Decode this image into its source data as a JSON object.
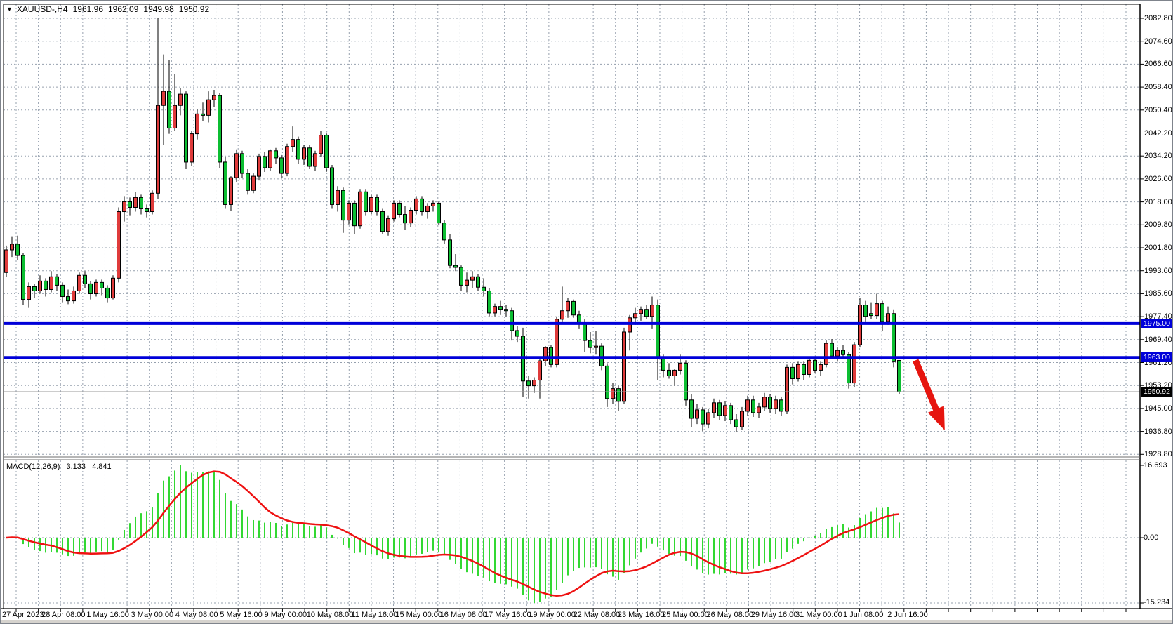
{
  "header": {
    "dropdown_icon": "▼",
    "symbol_timeframe": "XAUUSD-,H4",
    "open": "1961.96",
    "high": "1962.09",
    "low": "1949.98",
    "close": "1950.92"
  },
  "chart_data": {
    "type": "candlestick",
    "symbol": "XAUUSD-",
    "timeframe": "H4",
    "bull_color": "#df3b3b",
    "bear_color": "#0cbe32",
    "wick_color": "#000000",
    "grid_color": "#96a0ae",
    "ylim": [
      1928.8,
      2082.8
    ],
    "y_axis_labels": [
      "2082.80",
      "2074.60",
      "2066.60",
      "2058.40",
      "2050.40",
      "2042.20",
      "2034.20",
      "2026.00",
      "2018.00",
      "2009.80",
      "2001.80",
      "1993.60",
      "1985.60",
      "1977.40",
      "1969.40",
      "1961.20",
      "1953.20",
      "1945.00",
      "1936.80",
      "1928.80"
    ],
    "x_labels": [
      "27 Apr 2023",
      "28 Apr 08:00",
      "1 May 16:00",
      "3 May 00:00",
      "4 May 08:00",
      "5 May 16:00",
      "9 May 00:00",
      "10 May 08:00",
      "11 May 16:00",
      "15 May 00:00",
      "16 May 08:00",
      "17 May 16:00",
      "19 May 00:00",
      "22 May 08:00",
      "23 May 16:00",
      "25 May 00:00",
      "26 May 08:00",
      "29 May 16:00",
      "31 May 00:00",
      "1 Jun 08:00",
      "2 Jun 16:00"
    ],
    "bars_per_label": 8,
    "candles": [
      [
        1993,
        2002.5,
        1991.5,
        2001
      ],
      [
        2001,
        2005.8,
        1998.5,
        2003
      ],
      [
        2003,
        2006,
        1997.5,
        1999
      ],
      [
        1999,
        2000,
        1981.5,
        1983.5
      ],
      [
        1983.5,
        1989.5,
        1980.5,
        1988
      ],
      [
        1988,
        1989,
        1984,
        1986.5
      ],
      [
        1986.5,
        1992,
        1985.5,
        1990
      ],
      [
        1990,
        1991,
        1984.5,
        1987
      ],
      [
        1987,
        1993.5,
        1986,
        1991.5
      ],
      [
        1991.5,
        1992.5,
        1986.5,
        1988.5
      ],
      [
        1988.5,
        1989.5,
        1982.5,
        1984.5
      ],
      [
        1984.5,
        1987,
        1981.8,
        1983
      ],
      [
        1983,
        1988,
        1982,
        1986.5
      ],
      [
        1986.5,
        1993,
        1985.5,
        1992
      ],
      [
        1992,
        1993.5,
        1987.5,
        1989
      ],
      [
        1989,
        1990,
        1983.5,
        1985.5
      ],
      [
        1985.5,
        1990.5,
        1984.5,
        1989.5
      ],
      [
        1989.5,
        1990.5,
        1985,
        1987.5
      ],
      [
        1987.5,
        1988.5,
        1982.5,
        1984
      ],
      [
        1984,
        1992,
        1983.5,
        1991
      ],
      [
        1991,
        2016,
        1989.5,
        2014.5
      ],
      [
        2014.5,
        2020,
        2011,
        2018
      ],
      [
        2018,
        2019.5,
        2013,
        2016
      ],
      [
        2016,
        2021.5,
        2014.5,
        2019.5
      ],
      [
        2019.5,
        2020.5,
        2013.5,
        2015.5
      ],
      [
        2015.5,
        2017,
        2012.5,
        2014.5
      ],
      [
        2014.5,
        2022,
        2013.5,
        2021
      ],
      [
        2021,
        2082.8,
        2019,
        2052
      ],
      [
        2052,
        2070,
        2038,
        2057
      ],
      [
        2057,
        2068,
        2042,
        2044
      ],
      [
        2044,
        2063,
        2043,
        2052
      ],
      [
        2052,
        2058,
        2048.5,
        2056
      ],
      [
        2056,
        2057,
        2029.5,
        2032
      ],
      [
        2032,
        2043,
        2030.5,
        2042
      ],
      [
        2042,
        2050.5,
        2040,
        2049
      ],
      [
        2049,
        2053,
        2046.5,
        2048.5
      ],
      [
        2048.5,
        2057,
        2046,
        2054
      ],
      [
        2054,
        2057.5,
        2051.5,
        2055.5
      ],
      [
        2055.5,
        2056.5,
        2030,
        2032
      ],
      [
        2032,
        2034,
        2015.5,
        2017
      ],
      [
        2017,
        2027,
        2014.8,
        2026.5
      ],
      [
        2026.5,
        2036.5,
        2025,
        2035
      ],
      [
        2035,
        2036,
        2026.5,
        2028
      ],
      [
        2028,
        2029.5,
        2020.5,
        2022
      ],
      [
        2022,
        2028,
        2021,
        2027
      ],
      [
        2027,
        2035,
        2025.5,
        2034
      ],
      [
        2034,
        2035.5,
        2028.5,
        2030
      ],
      [
        2030,
        2036.5,
        2029,
        2036
      ],
      [
        2036,
        2037,
        2031.5,
        2033.5
      ],
      [
        2033.5,
        2034.5,
        2026.5,
        2028
      ],
      [
        2028,
        2038.5,
        2027,
        2037.5
      ],
      [
        2037.5,
        2044.6,
        2035.5,
        2040
      ],
      [
        2040,
        2041,
        2031.5,
        2033
      ],
      [
        2033,
        2038,
        2031,
        2037
      ],
      [
        2037,
        2038,
        2029.5,
        2030.5
      ],
      [
        2030.5,
        2036,
        2029,
        2035
      ],
      [
        2035,
        2043,
        2034,
        2041.5
      ],
      [
        2041.5,
        2042.5,
        2028.5,
        2030
      ],
      [
        2030,
        2031,
        2015.5,
        2017
      ],
      [
        2017,
        2023.5,
        2014.5,
        2022
      ],
      [
        2022,
        2023,
        2007,
        2011.5
      ],
      [
        2011.5,
        2018.5,
        2010,
        2017.5
      ],
      [
        2017.5,
        2018.5,
        2006.6,
        2009.5
      ],
      [
        2009.5,
        2022.5,
        2008.5,
        2021.5
      ],
      [
        2021.5,
        2022.5,
        2013,
        2014.5
      ],
      [
        2014.5,
        2020.5,
        2013.5,
        2019.5
      ],
      [
        2019.5,
        2020.5,
        2013,
        2014.5
      ],
      [
        2014.5,
        2015.5,
        2006.5,
        2007.5
      ],
      [
        2007.5,
        2013,
        2006,
        2012
      ],
      [
        2012,
        2018.5,
        2011,
        2017.5
      ],
      [
        2017.5,
        2018.5,
        2012.5,
        2013.5
      ],
      [
        2013.5,
        2016.5,
        2008,
        2010.5
      ],
      [
        2010.5,
        2016,
        2009,
        2015
      ],
      [
        2015,
        2020,
        2013.5,
        2019
      ],
      [
        2019,
        2020,
        2013,
        2014.5
      ],
      [
        2014.5,
        2017.5,
        2012,
        2016.5
      ],
      [
        2016.5,
        2018.5,
        2014.5,
        2017.5
      ],
      [
        2017.5,
        2018,
        2009.8,
        2010.5
      ],
      [
        2010.5,
        2011.5,
        2003,
        2004.5
      ],
      [
        2004.5,
        2006.5,
        1994.5,
        1995.5
      ],
      [
        1995.5,
        1999.5,
        1993.5,
        1994.8
      ],
      [
        1994.8,
        1995.5,
        1986.5,
        1988.5
      ],
      [
        1988.5,
        1993,
        1986,
        1990.3
      ],
      [
        1990.3,
        1993.5,
        1987.5,
        1991.5
      ],
      [
        1991.5,
        1992.5,
        1986.5,
        1987.8
      ],
      [
        1987.8,
        1991,
        1984.5,
        1986.5
      ],
      [
        1986.5,
        1987.5,
        1977.5,
        1978.7
      ],
      [
        1978.7,
        1982,
        1977.5,
        1981
      ],
      [
        1981,
        1983,
        1978,
        1980
      ],
      [
        1980,
        1981.5,
        1977.5,
        1979.5
      ],
      [
        1979.5,
        1980.5,
        1969,
        1972.5
      ],
      [
        1972.5,
        1974,
        1968.5,
        1970.5
      ],
      [
        1970.5,
        1973.5,
        1949,
        1954.7
      ],
      [
        1954.7,
        1956.5,
        1948.5,
        1953
      ],
      [
        1953,
        1956,
        1950.5,
        1955
      ],
      [
        1955,
        1962.5,
        1948.5,
        1961.8
      ],
      [
        1961.8,
        1967,
        1960,
        1966.5
      ],
      [
        1966.5,
        1967.5,
        1959.5,
        1960.5
      ],
      [
        1960.5,
        1977.5,
        1959.5,
        1976.5
      ],
      [
        1976.5,
        1988,
        1975.5,
        1979.5
      ],
      [
        1979.5,
        1984,
        1977,
        1982.8
      ],
      [
        1982.8,
        1983.5,
        1977,
        1978
      ],
      [
        1978,
        1979.5,
        1973,
        1974.8
      ],
      [
        1974.8,
        1976.5,
        1965,
        1969
      ],
      [
        1969,
        1972,
        1964.5,
        1966.5
      ],
      [
        1966.5,
        1972.5,
        1964,
        1967
      ],
      [
        1967,
        1968,
        1958.5,
        1960
      ],
      [
        1960,
        1961,
        1945.5,
        1948.5
      ],
      [
        1948.5,
        1954,
        1946.5,
        1952
      ],
      [
        1952,
        1953,
        1944,
        1947.5
      ],
      [
        1947.5,
        1973.5,
        1946.5,
        1972
      ],
      [
        1972,
        1978,
        1965.5,
        1977
      ],
      [
        1977,
        1980.5,
        1974.5,
        1978.5
      ],
      [
        1978.5,
        1981,
        1976,
        1980
      ],
      [
        1980,
        1981.5,
        1976.5,
        1977.5
      ],
      [
        1977.5,
        1984.5,
        1973,
        1981.5
      ],
      [
        1981.5,
        1983.5,
        1955,
        1963
      ],
      [
        1963,
        1964,
        1956,
        1958.5
      ],
      [
        1958.5,
        1961,
        1955.5,
        1956.5
      ],
      [
        1956.5,
        1959,
        1953,
        1958.5
      ],
      [
        1958.5,
        1964,
        1957,
        1961
      ],
      [
        1961,
        1962,
        1946,
        1948
      ],
      [
        1948,
        1950,
        1938.5,
        1941.5
      ],
      [
        1941.5,
        1946.5,
        1939.5,
        1944.5
      ],
      [
        1944.5,
        1945.5,
        1937,
        1939.5
      ],
      [
        1939.5,
        1945,
        1938,
        1943.5
      ],
      [
        1943.5,
        1948.5,
        1941.5,
        1947
      ],
      [
        1947,
        1948,
        1941,
        1942.5
      ],
      [
        1942.5,
        1947.5,
        1940.5,
        1946
      ],
      [
        1946,
        1947,
        1939.5,
        1941
      ],
      [
        1941,
        1943,
        1936.8,
        1938.5
      ],
      [
        1938.5,
        1945.5,
        1937.5,
        1944
      ],
      [
        1944,
        1949.5,
        1942.5,
        1948
      ],
      [
        1948,
        1949.5,
        1942,
        1943.5
      ],
      [
        1943.5,
        1947,
        1941.5,
        1945.5
      ],
      [
        1945.5,
        1950.5,
        1944,
        1949
      ],
      [
        1949,
        1950,
        1943.5,
        1945
      ],
      [
        1945,
        1949.5,
        1943,
        1948
      ],
      [
        1948,
        1949,
        1942.5,
        1944
      ],
      [
        1944,
        1960.5,
        1943,
        1959.5
      ],
      [
        1959.5,
        1961,
        1953.5,
        1955.5
      ],
      [
        1955.5,
        1961.5,
        1954.5,
        1960.5
      ],
      [
        1960.5,
        1961.5,
        1955,
        1957
      ],
      [
        1957,
        1962.5,
        1956,
        1962
      ],
      [
        1962,
        1963,
        1957.5,
        1958.5
      ],
      [
        1958.5,
        1961.5,
        1956.5,
        1960.5
      ],
      [
        1960.5,
        1969,
        1959.5,
        1968
      ],
      [
        1968,
        1969.5,
        1962.5,
        1963.5
      ],
      [
        1963.5,
        1966.5,
        1961.5,
        1965.5
      ],
      [
        1965.5,
        1967.5,
        1962.5,
        1964
      ],
      [
        1964,
        1965,
        1952,
        1954
      ],
      [
        1954,
        1968.5,
        1952.5,
        1967.5
      ],
      [
        1967.5,
        1984,
        1966.5,
        1981.5
      ],
      [
        1981.5,
        1983,
        1975.5,
        1977.5
      ],
      [
        1978.5,
        1982.5,
        1976.5,
        1977.8
      ],
      [
        1977.8,
        1985.5,
        1976.5,
        1982
      ],
      [
        1982,
        1983,
        1972.5,
        1975.5
      ],
      [
        1975.5,
        1981,
        1974.5,
        1978.5
      ],
      [
        1978.5,
        1980,
        1959.5,
        1961.5
      ],
      [
        1961.96,
        1962.09,
        1949.98,
        1950.92
      ]
    ],
    "hlines": [
      {
        "price": 1975.0,
        "label": "1975.00",
        "color": "#0000d9"
      },
      {
        "price": 1963.0,
        "label": "1963.00",
        "color": "#0000d9"
      }
    ],
    "current_price": {
      "value": 1950.92,
      "label": "1950.92",
      "line_color": "#999999"
    },
    "macd": {
      "name": "MACD",
      "params_label": "MACD(12,26,9)",
      "params": [
        12,
        26,
        9
      ],
      "macd_value": "3.133",
      "signal_value": "4.841",
      "axis_labels": [
        "16.693",
        "0.00",
        "-15.234"
      ],
      "histogram_color": "#33d833",
      "signal_color": "#ee1111"
    },
    "annotation_arrow": {
      "x_bar_start": 161.9,
      "price_start": 1962.0,
      "x_bar_end": 167.1,
      "price_end": 1937.3,
      "color": "#e6150f",
      "width": 9
    }
  }
}
